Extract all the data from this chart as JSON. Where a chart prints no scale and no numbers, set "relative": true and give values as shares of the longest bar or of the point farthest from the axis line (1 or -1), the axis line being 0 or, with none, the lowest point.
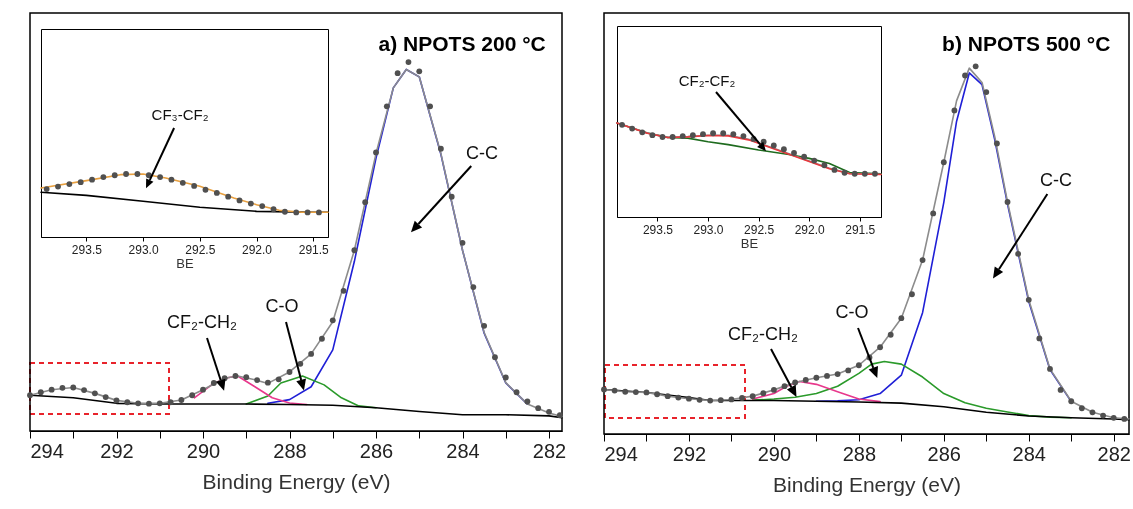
{
  "chart_data": [
    {
      "type": "line",
      "title": "a) NPOTS 200 °C",
      "xlabel": "Binding Energy (eV)",
      "relative": true,
      "xlim": [
        294,
        281.7
      ],
      "xticks": [
        294,
        {
          "value": 293,
          "label": null
        },
        292,
        {
          "value": 291,
          "label": null
        },
        290,
        {
          "value": 289,
          "label": null
        },
        288,
        {
          "value": 287,
          "label": null
        },
        286,
        {
          "value": 285,
          "label": null
        },
        284,
        {
          "value": 283,
          "label": null
        },
        282
      ],
      "series": [
        {
          "color": "#1f1fd6",
          "x": [
            288.5,
            288,
            287.5,
            287,
            286.5,
            286,
            285.6,
            285.3,
            285,
            284.5,
            284,
            283.5,
            283,
            282.5
          ],
          "values": [
            0.075,
            0.085,
            0.12,
            0.22,
            0.46,
            0.74,
            0.93,
            0.98,
            0.96,
            0.75,
            0.49,
            0.265,
            0.13,
            0.073
          ]
        },
        {
          "color": "#2a9a2a",
          "x": [
            289,
            288.5,
            288.2,
            287.7,
            287.2,
            286.8,
            286.4,
            286
          ],
          "values": [
            0.073,
            0.095,
            0.13,
            0.149,
            0.125,
            0.09,
            0.068,
            0.063
          ]
        },
        {
          "color": "#e8388c",
          "x": [
            290.2,
            289.8,
            289.5,
            289.2,
            288.8,
            288.4,
            288,
            287.6
          ],
          "values": [
            0.09,
            0.125,
            0.143,
            0.149,
            0.12,
            0.09,
            0.076,
            0.072
          ]
        },
        {
          "color": "#000000",
          "x": [
            294,
            293,
            292,
            291,
            290,
            289,
            288,
            287,
            286,
            285,
            284,
            283,
            282,
            281.7
          ],
          "values": [
            0.097,
            0.09,
            0.075,
            0.073,
            0.073,
            0.073,
            0.072,
            0.07,
            0.063,
            0.053,
            0.044,
            0.044,
            0.041,
            0.036
          ]
        },
        {
          "color": "#8c8c8c",
          "x": [
            294,
            293.5,
            293,
            292.5,
            292,
            291.5,
            291,
            290.5,
            290,
            289.5,
            289.2,
            288.8,
            288.5,
            288,
            287.5,
            287,
            286.5,
            286,
            285.6,
            285.3,
            285,
            284.5,
            284,
            283.5,
            283,
            282.5,
            282,
            281.7
          ],
          "values": [
            0.097,
            0.112,
            0.118,
            0.102,
            0.083,
            0.075,
            0.075,
            0.084,
            0.112,
            0.143,
            0.149,
            0.139,
            0.129,
            0.16,
            0.209,
            0.296,
            0.49,
            0.752,
            0.93,
            0.98,
            0.96,
            0.752,
            0.49,
            0.267,
            0.131,
            0.073,
            0.049,
            0.039
          ]
        },
        {
          "type": "scatter",
          "color": "#505050",
          "x": [
            294,
            293.75,
            293.5,
            293.25,
            293,
            292.75,
            292.5,
            292.25,
            292,
            291.75,
            291.5,
            291.25,
            291,
            290.75,
            290.5,
            290.25,
            290,
            289.75,
            289.5,
            289.25,
            289,
            288.75,
            288.5,
            288.25,
            288,
            287.75,
            287.5,
            287.25,
            287,
            286.75,
            286.5,
            286.25,
            286,
            285.75,
            285.5,
            285.25,
            285,
            284.75,
            284.5,
            284.25,
            284,
            283.75,
            283.5,
            283.25,
            283,
            282.75,
            282.5,
            282.25,
            282,
            281.75
          ],
          "values": [
            0.097,
            0.105,
            0.112,
            0.117,
            0.118,
            0.111,
            0.102,
            0.092,
            0.083,
            0.078,
            0.075,
            0.074,
            0.075,
            0.078,
            0.084,
            0.097,
            0.112,
            0.13,
            0.143,
            0.149,
            0.146,
            0.138,
            0.131,
            0.14,
            0.16,
            0.182,
            0.209,
            0.25,
            0.3,
            0.38,
            0.49,
            0.62,
            0.755,
            0.88,
            0.97,
            1.0,
            0.975,
            0.88,
            0.765,
            0.635,
            0.51,
            0.39,
            0.285,
            0.2,
            0.145,
            0.105,
            0.08,
            0.062,
            0.052,
            0.043
          ]
        }
      ],
      "annotations": [
        "C-C",
        "C-O",
        "CF₂-CH₂"
      ]
    },
    {
      "type": "line",
      "xlabel": "BE",
      "relative": true,
      "xlim": [
        293.9,
        291.37
      ],
      "xticks": [
        293.5,
        {
          "value": 293,
          "label": "293.0"
        },
        292.5,
        {
          "value": 292,
          "label": "292.0"
        },
        291.5
      ],
      "series": [
        {
          "color": "#000000",
          "x": [
            293.9,
            293.5,
            293,
            292.5,
            292,
            291.5,
            291.37
          ],
          "values": [
            0.709,
            0.661,
            0.566,
            0.471,
            0.407,
            0.392,
            0.392
          ]
        },
        {
          "color": "#e8a040",
          "x": [
            293.9,
            293.5,
            293.2,
            293,
            292.8,
            292.5,
            292.2,
            292,
            291.8,
            291.6,
            291.37
          ],
          "values": [
            0.778,
            0.894,
            0.989,
            1.0,
            0.937,
            0.804,
            0.619,
            0.513,
            0.423,
            0.392,
            0.392
          ]
        },
        {
          "type": "scatter",
          "color": "#505050",
          "x": [
            293.85,
            293.75,
            293.65,
            293.55,
            293.45,
            293.35,
            293.25,
            293.15,
            293.05,
            292.95,
            292.85,
            292.75,
            292.65,
            292.55,
            292.45,
            292.35,
            292.25,
            292.15,
            292.05,
            291.95,
            291.85,
            291.75,
            291.65,
            291.55,
            291.45
          ],
          "values": [
            0.76,
            0.8,
            0.84,
            0.87,
            0.91,
            0.95,
            0.98,
            1.0,
            1.0,
            0.98,
            0.95,
            0.91,
            0.86,
            0.81,
            0.75,
            0.7,
            0.64,
            0.58,
            0.53,
            0.49,
            0.44,
            0.4,
            0.39,
            0.39,
            0.39
          ]
        }
      ],
      "annotations": [
        "CF₃-CF₂"
      ]
    },
    {
      "type": "line",
      "title": "b) NPOTS 500 °C",
      "xlabel": "Binding Energy (eV)",
      "relative": true,
      "xlim": [
        294,
        281.64
      ],
      "xticks": [
        294,
        {
          "value": 293,
          "label": null
        },
        292,
        {
          "value": 291,
          "label": null
        },
        290,
        {
          "value": 289,
          "label": null
        },
        288,
        {
          "value": 287,
          "label": null
        },
        286,
        {
          "value": 285,
          "label": null
        },
        284,
        {
          "value": 283,
          "label": null
        },
        282
      ],
      "series": [
        {
          "color": "#1f1fd6",
          "x": [
            289,
            288.5,
            288,
            287.5,
            287,
            286.5,
            286,
            285.7,
            285.4,
            285.1,
            284.8,
            284.5,
            284,
            283.5,
            283
          ],
          "values": [
            0.089,
            0.09,
            0.093,
            0.11,
            0.16,
            0.33,
            0.63,
            0.85,
            0.982,
            0.95,
            0.8,
            0.625,
            0.36,
            0.175,
            0.088
          ]
        },
        {
          "color": "#2a9a2a",
          "x": [
            290.5,
            290,
            289.5,
            289,
            288.5,
            288,
            287.7,
            287.4,
            287,
            286.5,
            286,
            285.5,
            285,
            284.5,
            284,
            283.5,
            283
          ],
          "values": [
            0.092,
            0.095,
            0.1,
            0.11,
            0.13,
            0.165,
            0.19,
            0.197,
            0.19,
            0.155,
            0.11,
            0.085,
            0.07,
            0.06,
            0.05,
            0.046,
            0.044
          ]
        },
        {
          "color": "#e8388c",
          "x": [
            290.5,
            290,
            289.7,
            289.4,
            289,
            288.5,
            288,
            287.5
          ],
          "values": [
            0.095,
            0.11,
            0.13,
            0.143,
            0.135,
            0.115,
            0.095,
            0.088
          ]
        },
        {
          "color": "#000000",
          "x": [
            294,
            293,
            292,
            291.5,
            291,
            290,
            289,
            288,
            287,
            286,
            285,
            284,
            283,
            282,
            281.64
          ],
          "values": [
            0.121,
            0.113,
            0.099,
            0.091,
            0.091,
            0.091,
            0.089,
            0.087,
            0.084,
            0.074,
            0.059,
            0.049,
            0.044,
            0.041,
            0.039
          ]
        },
        {
          "color": "#8c8c8c",
          "x": [
            294,
            293.5,
            293,
            292.5,
            292,
            291.5,
            291,
            290.5,
            290,
            289.5,
            289,
            288.5,
            288,
            287.5,
            287,
            286.5,
            286,
            285.7,
            285.4,
            285.1,
            284.8,
            284.5,
            284,
            283.5,
            283,
            282.5,
            282,
            281.64
          ],
          "values": [
            0.121,
            0.115,
            0.113,
            0.103,
            0.096,
            0.091,
            0.094,
            0.103,
            0.12,
            0.14,
            0.153,
            0.163,
            0.187,
            0.236,
            0.315,
            0.473,
            0.739,
            0.906,
            0.995,
            0.956,
            0.808,
            0.631,
            0.365,
            0.177,
            0.089,
            0.059,
            0.044,
            0.041
          ]
        },
        {
          "type": "scatter",
          "color": "#505050",
          "x": [
            294,
            293.75,
            293.5,
            293.25,
            293,
            292.75,
            292.5,
            292.25,
            292,
            291.75,
            291.5,
            291.25,
            291,
            290.75,
            290.5,
            290.25,
            290,
            289.75,
            289.5,
            289.25,
            289,
            288.75,
            288.5,
            288.25,
            288,
            287.75,
            287.5,
            287.25,
            287,
            286.75,
            286.5,
            286.25,
            286,
            285.75,
            285.5,
            285.25,
            285,
            284.75,
            284.5,
            284.25,
            284,
            283.75,
            283.5,
            283.25,
            283,
            282.75,
            282.5,
            282.25,
            282,
            281.75
          ],
          "values": [
            0.121,
            0.118,
            0.115,
            0.114,
            0.113,
            0.108,
            0.103,
            0.099,
            0.096,
            0.093,
            0.091,
            0.092,
            0.094,
            0.098,
            0.103,
            0.111,
            0.12,
            0.13,
            0.14,
            0.147,
            0.153,
            0.158,
            0.163,
            0.173,
            0.187,
            0.208,
            0.236,
            0.27,
            0.315,
            0.38,
            0.473,
            0.6,
            0.739,
            0.88,
            0.975,
            1.0,
            0.93,
            0.79,
            0.631,
            0.49,
            0.365,
            0.26,
            0.177,
            0.12,
            0.089,
            0.07,
            0.059,
            0.05,
            0.044,
            0.041
          ]
        }
      ],
      "annotations": [
        "C-C",
        "C-O",
        "CF₂-CH₂"
      ]
    },
    {
      "type": "line",
      "xlabel": "BE",
      "relative": true,
      "xlim": [
        293.9,
        291.29
      ],
      "xticks": [
        293.5,
        {
          "value": 293,
          "label": "293.0"
        },
        292.5,
        {
          "value": 292,
          "label": "292.0"
        },
        291.5
      ],
      "series": [
        {
          "color": "#1e6b1e",
          "x": [
            293.9,
            293.6,
            293.4,
            293.2,
            293,
            292.8,
            292.5,
            292.2,
            292,
            291.8,
            291.6,
            291.29
          ],
          "values": [
            1.0,
            0.892,
            0.846,
            0.838,
            0.8,
            0.769,
            0.712,
            0.665,
            0.623,
            0.569,
            0.473,
            0.458
          ]
        },
        {
          "color": "#8c8c8c",
          "x": [
            293.9,
            293.6,
            293.4,
            293.2,
            293,
            292.8,
            292.6,
            292.4,
            292.2,
            292,
            291.8,
            291.6,
            291.29
          ],
          "values": [
            1.0,
            0.892,
            0.846,
            0.854,
            0.869,
            0.869,
            0.827,
            0.75,
            0.673,
            0.596,
            0.519,
            0.462,
            0.454
          ]
        },
        {
          "color": "#e8383d",
          "x": [
            293.9,
            293.6,
            293.4,
            293.2,
            293,
            292.8,
            292.6,
            292.4,
            292.2,
            292,
            291.8,
            291.6,
            291.29
          ],
          "values": [
            1.0,
            0.89,
            0.845,
            0.852,
            0.866,
            0.862,
            0.82,
            0.745,
            0.668,
            0.59,
            0.512,
            0.46,
            0.452
          ]
        },
        {
          "type": "scatter",
          "color": "#505050",
          "x": [
            293.85,
            293.75,
            293.65,
            293.55,
            293.45,
            293.35,
            293.25,
            293.15,
            293.05,
            292.95,
            292.85,
            292.75,
            292.65,
            292.55,
            292.45,
            292.35,
            292.25,
            292.15,
            292.05,
            291.95,
            291.85,
            291.75,
            291.65,
            291.55,
            291.45,
            291.35
          ],
          "values": [
            0.98,
            0.94,
            0.9,
            0.87,
            0.85,
            0.85,
            0.86,
            0.87,
            0.88,
            0.89,
            0.89,
            0.88,
            0.86,
            0.83,
            0.8,
            0.76,
            0.72,
            0.68,
            0.64,
            0.6,
            0.55,
            0.5,
            0.47,
            0.46,
            0.46,
            0.46
          ]
        }
      ],
      "annotations": [
        "CF₂-CF₂"
      ]
    }
  ]
}
